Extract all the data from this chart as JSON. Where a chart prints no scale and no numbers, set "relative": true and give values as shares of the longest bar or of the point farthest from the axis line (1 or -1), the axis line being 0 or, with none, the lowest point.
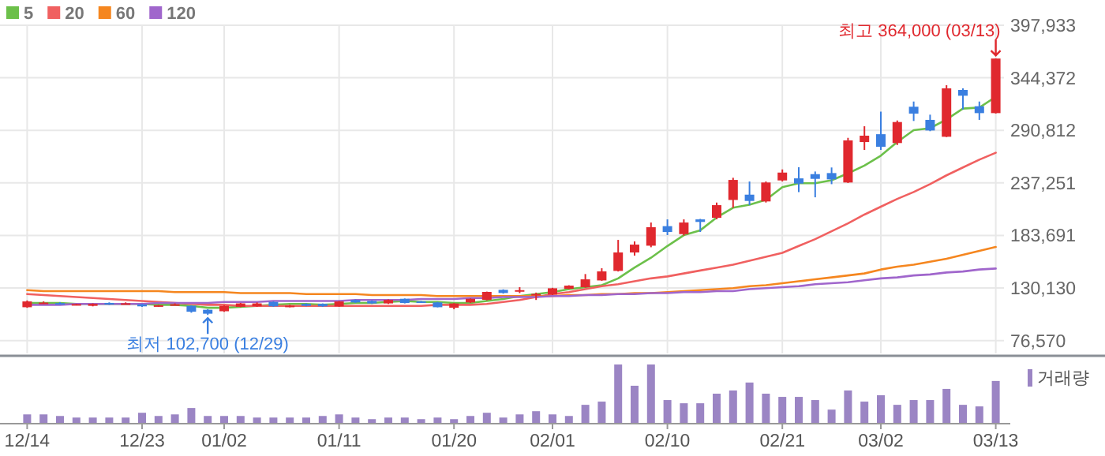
{
  "chart_data": [
    {
      "type": "candlestick",
      "legend": "top left",
      "grid": true,
      "tick_labels": "y",
      "categories": [
        null,
        null,
        null,
        null,
        null,
        null,
        null,
        null,
        null,
        null,
        null,
        null,
        null,
        null,
        null,
        null,
        null,
        null,
        null,
        null,
        null,
        null,
        null,
        null,
        null,
        null,
        null,
        null,
        null,
        null,
        null,
        null,
        null,
        null,
        null,
        null,
        null,
        null,
        null,
        null,
        null,
        null,
        null,
        null,
        null,
        null,
        null,
        null,
        null,
        null,
        null,
        null,
        null,
        null,
        null,
        null,
        null,
        null,
        null,
        null
      ],
      "ylim": [
        63500,
        397933
      ],
      "yticks": [
        {
          "value": 76570,
          "label": "76,570"
        },
        {
          "value": 130130,
          "label": "130,130"
        },
        {
          "value": 183691,
          "label": "183,691"
        },
        {
          "value": 237251,
          "label": "237,251"
        },
        {
          "value": 290812,
          "label": "290,812"
        },
        {
          "value": 344372,
          "label": "344,372"
        },
        {
          "value": 397933,
          "label": "397,933"
        }
      ],
      "ohlc": [
        [
          110600,
          117500,
          110000,
          116500
        ],
        [
          115000,
          116500,
          114000,
          115300
        ],
        [
          114800,
          115800,
          114000,
          114500
        ],
        [
          113500,
          114000,
          112500,
          113800
        ],
        [
          112000,
          114500,
          111500,
          114000
        ],
        [
          115000,
          115500,
          113000,
          113500
        ],
        [
          114300,
          115500,
          114000,
          114600
        ],
        [
          113500,
          114000,
          111000,
          111500
        ],
        [
          112300,
          113000,
          111000,
          112600
        ],
        [
          113300,
          114500,
          113000,
          113600
        ],
        [
          112000,
          112500,
          105000,
          106000
        ],
        [
          108000,
          108500,
          102700,
          104000
        ],
        [
          106500,
          112500,
          106000,
          112000
        ],
        [
          111000,
          115000,
          110500,
          114500
        ],
        [
          111500,
          115500,
          111000,
          114500
        ],
        [
          116000,
          116500,
          111000,
          111500
        ],
        [
          111800,
          113000,
          110500,
          112200
        ],
        [
          114000,
          114500,
          111500,
          112000
        ],
        [
          114000,
          114500,
          111000,
          111500
        ],
        [
          111500,
          117000,
          111000,
          116500
        ],
        [
          118000,
          118500,
          115000,
          115500
        ],
        [
          117000,
          117500,
          114000,
          114500
        ],
        [
          114500,
          118500,
          114000,
          118000
        ],
        [
          119200,
          119500,
          114500,
          114900
        ],
        [
          116500,
          117000,
          115000,
          115500
        ],
        [
          115500,
          116000,
          110500,
          110600
        ],
        [
          110100,
          114800,
          108500,
          114400
        ],
        [
          115500,
          119500,
          115000,
          119200
        ],
        [
          118100,
          126500,
          117500,
          126200
        ],
        [
          128300,
          128800,
          124500,
          125100
        ],
        [
          127600,
          131000,
          125000,
          128000
        ],
        [
          123800,
          125500,
          118000,
          124200
        ],
        [
          123500,
          130500,
          123000,
          129900
        ],
        [
          129400,
          133000,
          129000,
          132600
        ],
        [
          131000,
          144400,
          130500,
          139000
        ],
        [
          137900,
          150300,
          137500,
          147100
        ],
        [
          147600,
          179200,
          147000,
          166400
        ],
        [
          166400,
          177600,
          163200,
          174400
        ],
        [
          173300,
          196900,
          171700,
          192100
        ],
        [
          193200,
          200100,
          184100,
          187300
        ],
        [
          185100,
          200100,
          183600,
          196900
        ],
        [
          200100,
          200600,
          187300,
          197500
        ],
        [
          201700,
          217300,
          200100,
          214600
        ],
        [
          219900,
          242500,
          211900,
          240300
        ],
        [
          225300,
          238700,
          214600,
          218900
        ],
        [
          218400,
          238700,
          217300,
          237700
        ],
        [
          239800,
          251000,
          238700,
          247800
        ],
        [
          241900,
          253200,
          228000,
          236600
        ],
        [
          246200,
          248900,
          222600,
          241400
        ],
        [
          247300,
          253000,
          236000,
          240900
        ],
        [
          237700,
          283200,
          237200,
          280600
        ],
        [
          278900,
          295000,
          270900,
          285400
        ],
        [
          286900,
          310000,
          270900,
          274100
        ],
        [
          277900,
          300900,
          275900,
          299300
        ],
        [
          314900,
          320200,
          300400,
          307900
        ],
        [
          301500,
          306800,
          290000,
          290700
        ],
        [
          284300,
          336800,
          284000,
          333600
        ],
        [
          332000,
          333600,
          312200,
          326100
        ],
        [
          315400,
          320200,
          301500,
          308400
        ],
        [
          308400,
          364000,
          308000,
          364000
        ]
      ],
      "colors": [
        "#e0282e",
        "#e0282e",
        "#3a7fe0",
        "#e0282e",
        "#e0282e",
        "#3a7fe0",
        "#e0282e",
        "#3a7fe0",
        "#e0282e",
        "#e0282e",
        "#3a7fe0",
        "#3a7fe0",
        "#e0282e",
        "#e0282e",
        "#e0282e",
        "#3a7fe0",
        "#e0282e",
        "#3a7fe0",
        "#3a7fe0",
        "#e0282e",
        "#3a7fe0",
        "#3a7fe0",
        "#e0282e",
        "#3a7fe0",
        "#3a7fe0",
        "#3a7fe0",
        "#e0282e",
        "#e0282e",
        "#e0282e",
        "#3a7fe0",
        "#e0282e",
        "#e0282e",
        "#e0282e",
        "#e0282e",
        "#e0282e",
        "#e0282e",
        "#e0282e",
        "#e0282e",
        "#e0282e",
        "#3a7fe0",
        "#e0282e",
        "#3a7fe0",
        "#e0282e",
        "#e0282e",
        "#3a7fe0",
        "#e0282e",
        "#e0282e",
        "#3a7fe0",
        "#3a7fe0",
        "#3a7fe0",
        "#e0282e",
        "#e0282e",
        "#3a7fe0",
        "#e0282e",
        "#3a7fe0",
        "#3a7fe0",
        "#e0282e",
        "#3a7fe0",
        "#3a7fe0",
        "#e0282e"
      ],
      "series": [
        {
          "type": "line",
          "name": "5",
          "color": "#6cc04a",
          "values": [
            115000,
            115000,
            115000,
            114000,
            114000,
            114000,
            114000,
            114000,
            113000,
            113000,
            112000,
            110000,
            110000,
            111000,
            112000,
            113000,
            114000,
            114000,
            113000,
            114000,
            115000,
            115000,
            116000,
            117000,
            116000,
            116000,
            115000,
            115000,
            117000,
            119000,
            122000,
            124000,
            126000,
            129000,
            131000,
            133000,
            140000,
            151000,
            161000,
            173000,
            184000,
            189000,
            202000,
            212000,
            215000,
            220000,
            233000,
            237000,
            237000,
            240000,
            247000,
            255000,
            265000,
            279000,
            291000,
            293000,
            302000,
            313000,
            314000,
            325000
          ]
        },
        {
          "type": "line",
          "name": "20",
          "color": "#f06060",
          "values": [
            124000,
            123000,
            122000,
            121000,
            120000,
            119000,
            118000,
            117000,
            116000,
            115000,
            114000,
            113000,
            113000,
            112000,
            112000,
            112000,
            112000,
            112000,
            112000,
            112000,
            112000,
            112000,
            112000,
            112000,
            112000,
            113000,
            113000,
            113000,
            114000,
            116000,
            118000,
            121000,
            124000,
            126000,
            129000,
            132000,
            134000,
            137000,
            140000,
            142000,
            145000,
            148000,
            151000,
            154000,
            158000,
            162000,
            166000,
            173000,
            180000,
            188000,
            196000,
            205000,
            213000,
            221000,
            228000,
            236000,
            245000,
            253000,
            261000,
            268000
          ]
        },
        {
          "type": "line",
          "name": "60",
          "color": "#f5861f",
          "values": [
            128000,
            127000,
            127000,
            127000,
            127000,
            127000,
            127000,
            127000,
            127000,
            126000,
            126000,
            126000,
            126000,
            125000,
            125000,
            125000,
            125000,
            124000,
            124000,
            124000,
            124000,
            123000,
            123000,
            123000,
            123000,
            122000,
            122000,
            122000,
            122000,
            122000,
            122000,
            122000,
            122000,
            123000,
            123000,
            124000,
            124000,
            125000,
            125000,
            126000,
            127000,
            128000,
            129000,
            130000,
            132000,
            133000,
            135000,
            137000,
            139000,
            141000,
            143000,
            145000,
            149000,
            152000,
            154000,
            157000,
            160000,
            164000,
            168000,
            172000
          ]
        },
        {
          "type": "line",
          "name": "120",
          "color": "#a066cc",
          "values": [
            113000,
            113000,
            113000,
            114000,
            114000,
            114000,
            114000,
            114000,
            115000,
            115000,
            115000,
            115000,
            116000,
            116000,
            116000,
            117000,
            117000,
            117000,
            117000,
            117000,
            118000,
            118000,
            118000,
            118000,
            119000,
            119000,
            119000,
            120000,
            120000,
            121000,
            121000,
            121000,
            122000,
            122000,
            123000,
            123000,
            124000,
            124000,
            125000,
            125000,
            126000,
            126000,
            127000,
            127000,
            129000,
            130000,
            131000,
            132000,
            134000,
            135000,
            136000,
            138000,
            140000,
            141000,
            143000,
            144000,
            146000,
            147000,
            149000,
            150000
          ]
        }
      ],
      "annotations": [
        "최고 364,000 (03/13)",
        {
          "text": "최저 102,700 (12/29)",
          "y": 102700
        }
      ]
    },
    {
      "type": "bar",
      "relative": true,
      "legend": "top right",
      "tick_labels": "x",
      "categories": [
        "12/14",
        null,
        null,
        null,
        null,
        null,
        null,
        "12/23",
        null,
        null,
        null,
        null,
        "01/02",
        null,
        null,
        null,
        null,
        null,
        null,
        "01/11",
        null,
        null,
        null,
        null,
        null,
        null,
        "01/20",
        null,
        null,
        null,
        null,
        null,
        "02/01",
        null,
        null,
        null,
        null,
        null,
        null,
        "02/10",
        null,
        null,
        null,
        null,
        null,
        null,
        "02/21",
        null,
        null,
        null,
        null,
        null,
        "03/02",
        null,
        null,
        null,
        null,
        null,
        null,
        "03/13"
      ],
      "series": [
        {
          "name": "거래량",
          "color": "#9b85c4",
          "values": [
            0.145,
            0.145,
            0.118,
            0.091,
            0.091,
            0.091,
            0.091,
            0.173,
            0.118,
            0.145,
            0.255,
            0.118,
            0.118,
            0.118,
            0.091,
            0.091,
            0.091,
            0.091,
            0.118,
            0.145,
            0.091,
            0.064,
            0.091,
            0.091,
            0.064,
            0.091,
            0.064,
            0.118,
            0.173,
            0.091,
            0.145,
            0.2,
            0.145,
            0.118,
            0.309,
            0.364,
            1,
            0.636,
            1,
            0.391,
            0.336,
            0.336,
            0.5,
            0.555,
            0.691,
            0.5,
            0.445,
            0.445,
            0.391,
            0.227,
            0.555,
            0.364,
            0.473,
            0.309,
            0.391,
            0.391,
            0.582,
            0.309,
            0.282,
            0.718
          ]
        }
      ]
    }
  ]
}
